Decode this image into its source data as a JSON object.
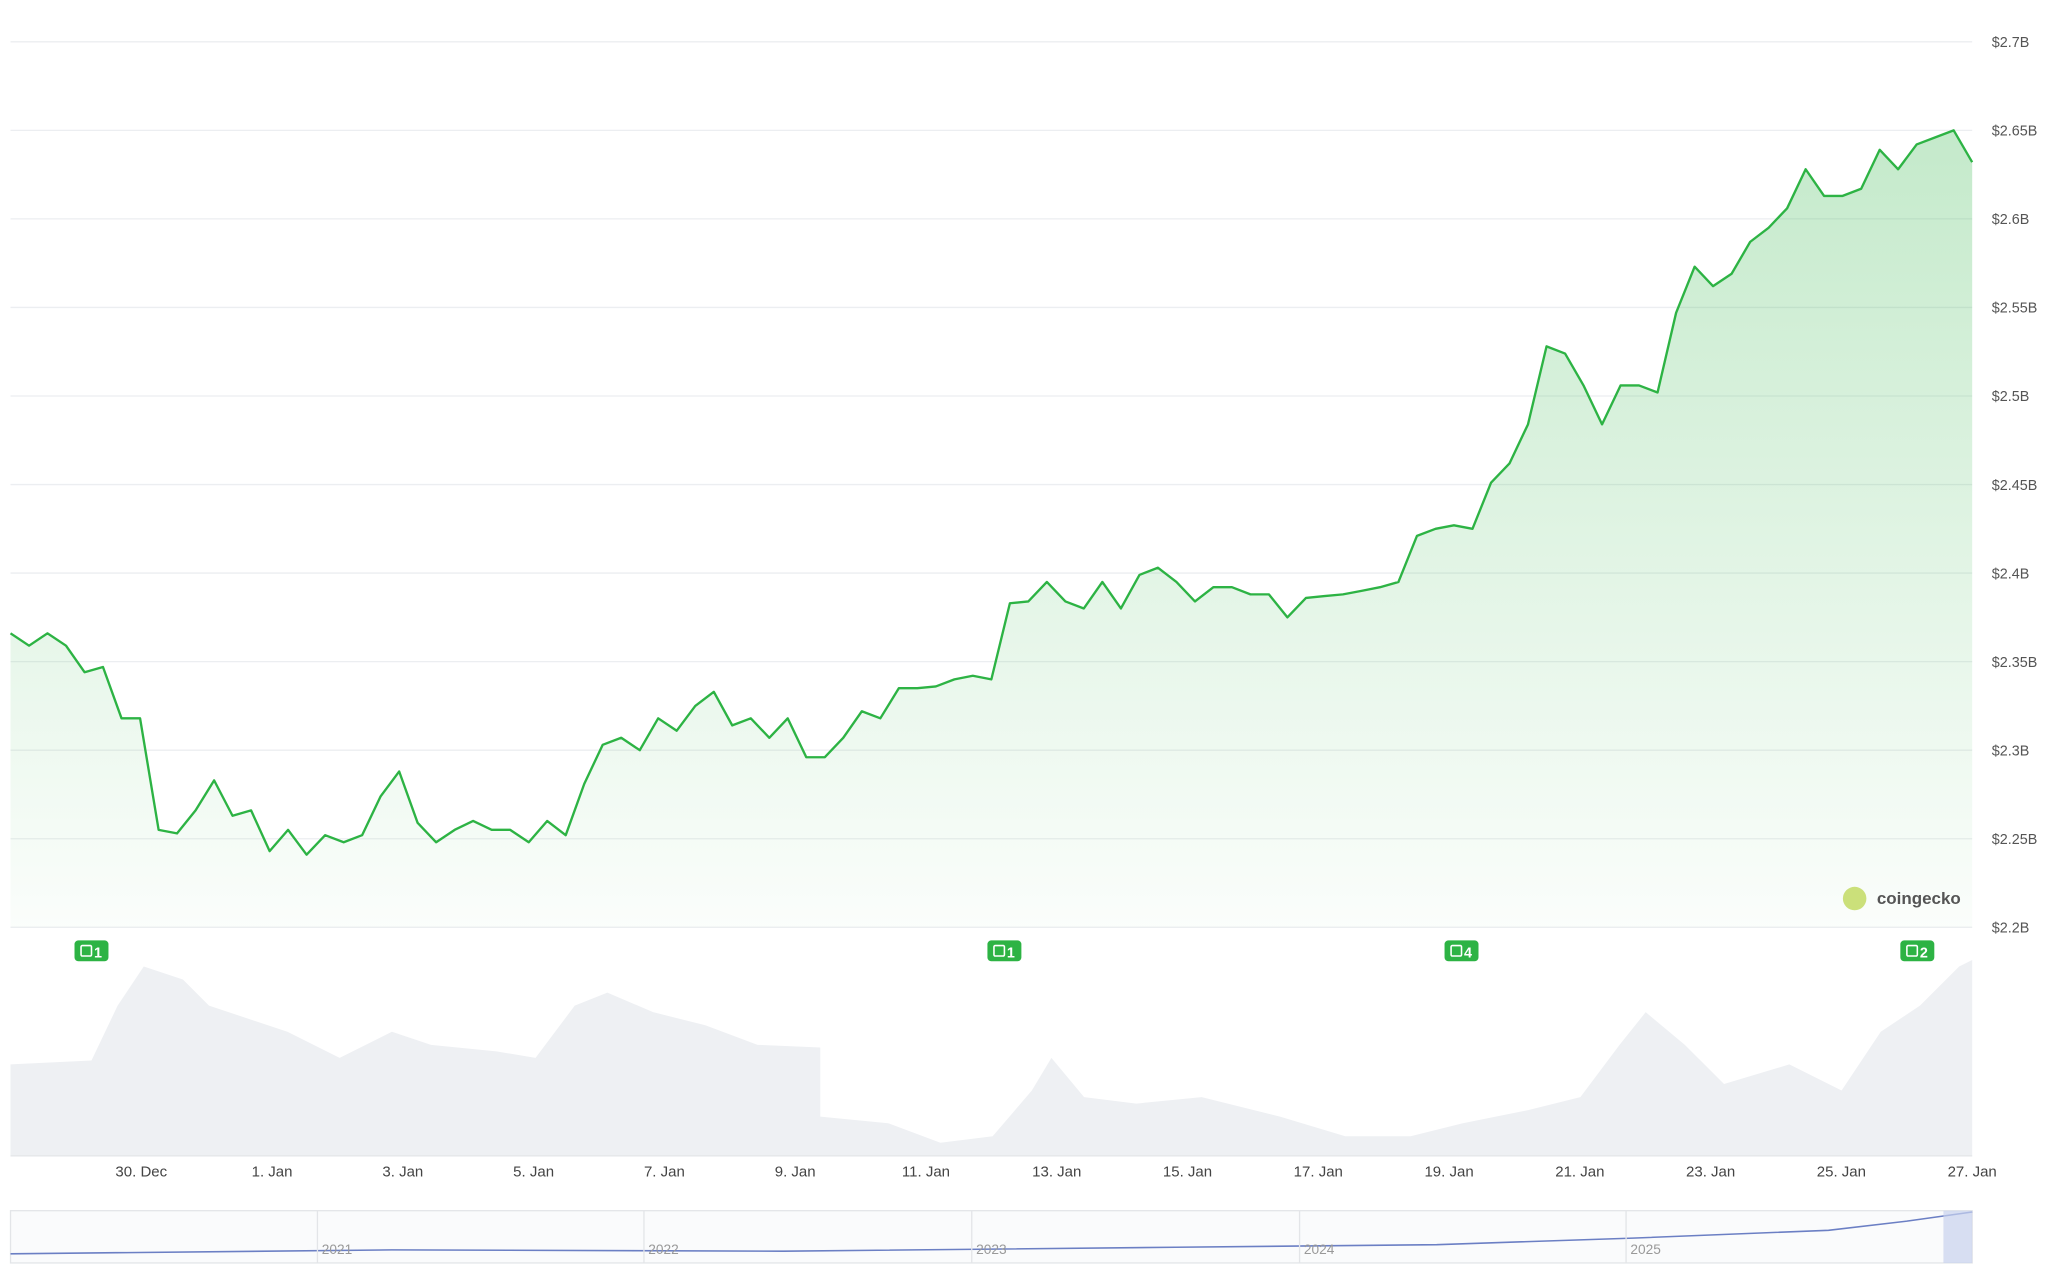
{
  "chart_data": {
    "type": "line",
    "brand": "coingecko",
    "series": [
      {
        "name": "Market Cap",
        "color": "#2db344",
        "values": [
          2.366,
          2.359,
          2.366,
          2.359,
          2.344,
          2.347,
          2.318,
          2.318,
          2.255,
          2.253,
          2.266,
          2.283,
          2.263,
          2.266,
          2.243,
          2.255,
          2.241,
          2.252,
          2.248,
          2.252,
          2.274,
          2.288,
          2.259,
          2.248,
          2.255,
          2.26,
          2.255,
          2.255,
          2.248,
          2.26,
          2.252,
          2.281,
          2.303,
          2.307,
          2.3,
          2.318,
          2.311,
          2.325,
          2.333,
          2.314,
          2.318,
          2.307,
          2.318,
          2.296,
          2.296,
          2.307,
          2.322,
          2.318,
          2.335,
          2.335,
          2.336,
          2.34,
          2.342,
          2.34,
          2.383,
          2.384,
          2.395,
          2.384,
          2.38,
          2.395,
          2.38,
          2.399,
          2.403,
          2.395,
          2.384,
          2.392,
          2.392,
          2.388,
          2.388,
          2.375,
          2.386,
          2.387,
          2.388,
          2.39,
          2.392,
          2.395,
          2.421,
          2.425,
          2.427,
          2.425,
          2.451,
          2.462,
          2.484,
          2.528,
          2.524,
          2.506,
          2.484,
          2.506,
          2.506,
          2.502,
          2.547,
          2.573,
          2.562,
          2.569,
          2.587,
          2.595,
          2.606,
          2.628,
          2.613,
          2.613,
          2.617,
          2.639,
          2.628,
          2.642,
          2.646,
          2.65,
          2.632
        ]
      }
    ],
    "ylim": [
      2.2,
      2.7
    ],
    "yticks": [
      {
        "value": 2.2,
        "label": "$2.2B"
      },
      {
        "value": 2.25,
        "label": "$2.25B"
      },
      {
        "value": 2.3,
        "label": "$2.3B"
      },
      {
        "value": 2.35,
        "label": "$2.35B"
      },
      {
        "value": 2.4,
        "label": "$2.4B"
      },
      {
        "value": 2.45,
        "label": "$2.45B"
      },
      {
        "value": 2.5,
        "label": "$2.5B"
      },
      {
        "value": 2.55,
        "label": "$2.55B"
      },
      {
        "value": 2.6,
        "label": "$2.6B"
      },
      {
        "value": 2.65,
        "label": "$2.65B"
      },
      {
        "value": 2.7,
        "label": "$2.7B"
      }
    ],
    "xticks": [
      "30. Dec",
      "1. Jan",
      "3. Jan",
      "5. Jan",
      "7. Jan",
      "9. Jan",
      "11. Jan",
      "13. Jan",
      "15. Jan",
      "17. Jan",
      "19. Jan",
      "21. Jan",
      "23. Jan",
      "25. Jan",
      "27. Jan"
    ],
    "grid": true,
    "events": [
      "1",
      "1",
      "4",
      "2"
    ],
    "navigator_years": [
      "2021",
      "2022",
      "2023",
      "2024",
      "2025"
    ]
  }
}
